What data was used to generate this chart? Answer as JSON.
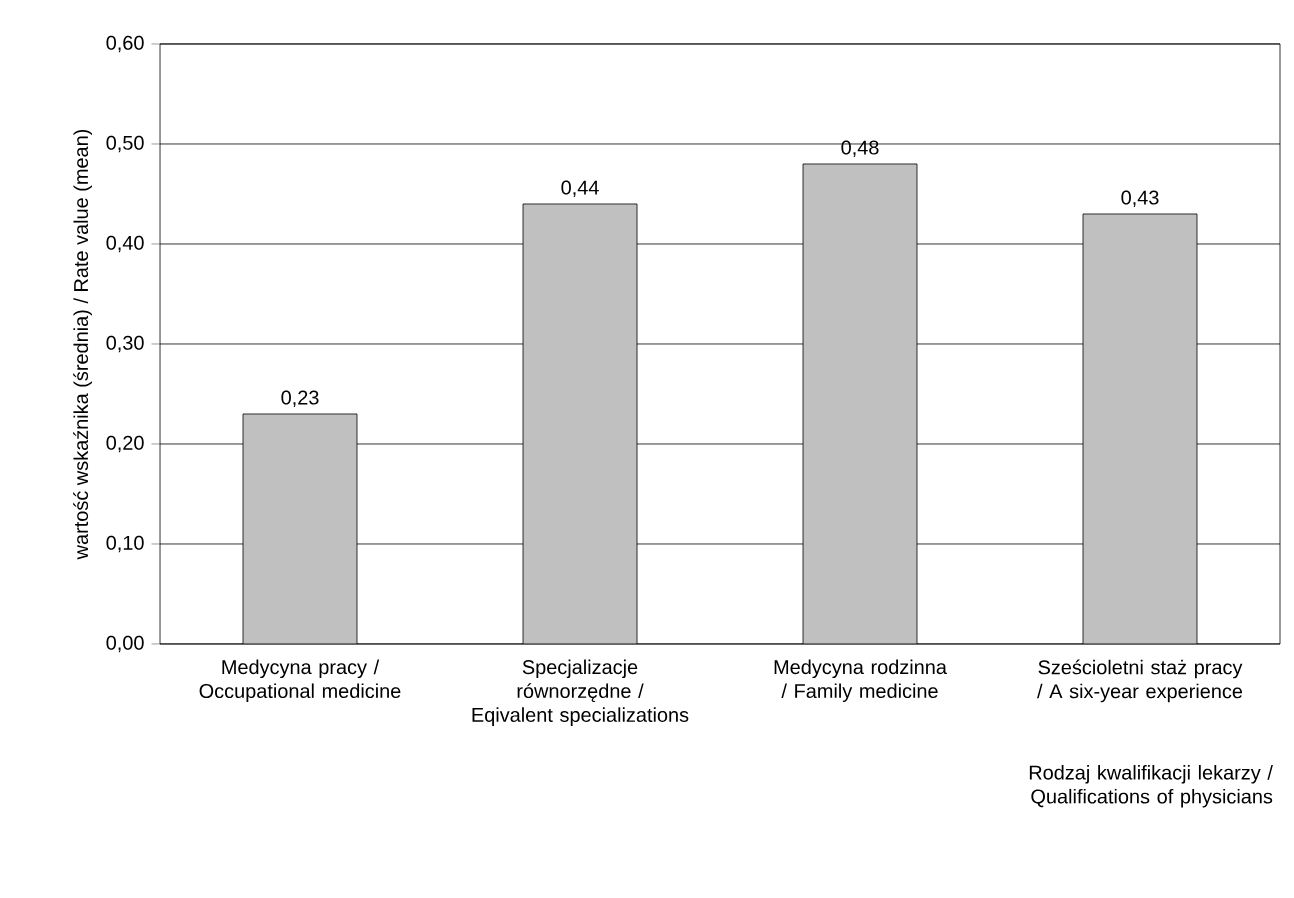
{
  "chart_data": {
    "type": "bar",
    "categories": [
      "Medycyna pracy / Occupational medicine",
      "Specjalizacje równorzędne / Eqivalent specializations",
      "Medycyna rodzinna / Family medicine",
      "Sześcioletni staż pracy / A six-year experience"
    ],
    "values": [
      0.23,
      0.44,
      0.48,
      0.43
    ],
    "value_labels": [
      "0,23",
      "0,44",
      "0,48",
      "0,43"
    ],
    "color": "#c0c0c0",
    "xlabel": "Rodzaj  kwalifikacji lekarzy / Qualifications of physicians",
    "ylabel": "wartość wskaźnika (średnia) / Rate value (mean)",
    "ylim": [
      0,
      0.6
    ],
    "yticks": [
      {
        "value": 0,
        "label": "0,00"
      },
      {
        "value": 0.1,
        "label": "0,10"
      },
      {
        "value": 0.2,
        "label": "0,20"
      },
      {
        "value": 0.3,
        "label": "0,30"
      },
      {
        "value": 0.4,
        "label": "0,40"
      },
      {
        "value": 0.5,
        "label": "0,50"
      },
      {
        "value": 0.6,
        "label": "0,60"
      }
    ],
    "grid": "y"
  }
}
